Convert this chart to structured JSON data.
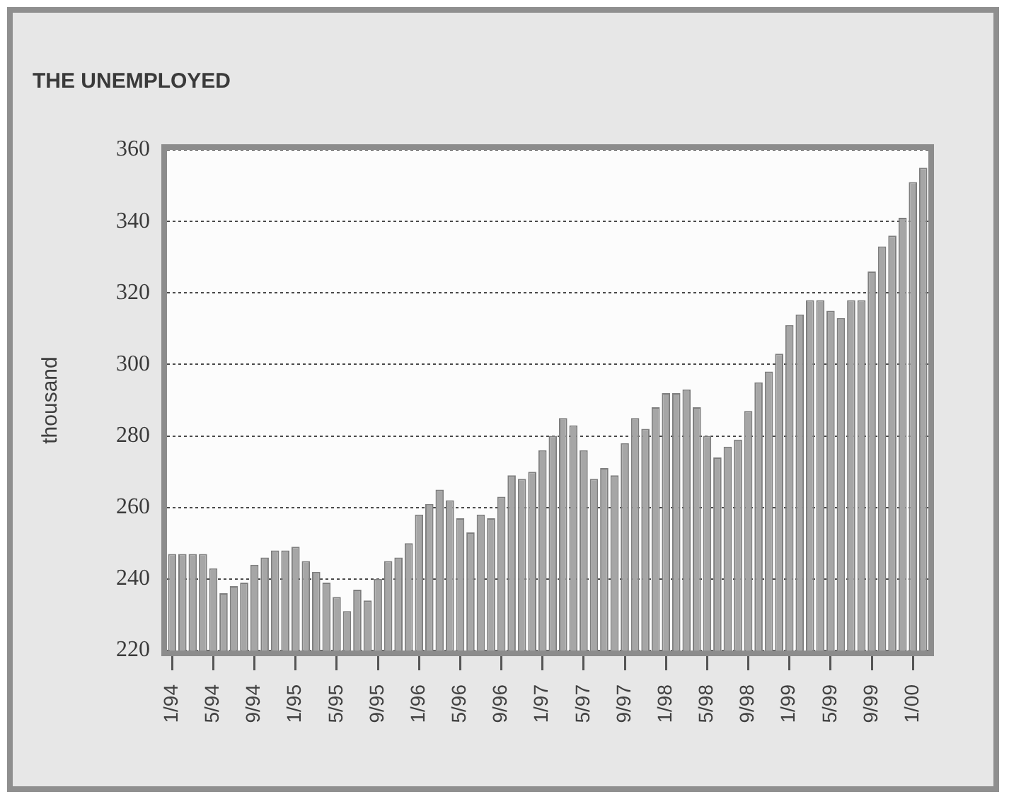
{
  "chart_data": {
    "type": "bar",
    "title": "THE UNEMPLOYED",
    "ylabel": "thousand",
    "categories": [
      "1/94",
      null,
      null,
      null,
      "5/94",
      null,
      null,
      null,
      "9/94",
      null,
      null,
      null,
      "1/95",
      null,
      null,
      null,
      "5/95",
      null,
      null,
      null,
      "9/95",
      null,
      null,
      null,
      "1/96",
      null,
      null,
      null,
      "5/96",
      null,
      null,
      null,
      "9/96",
      null,
      null,
      null,
      "1/97",
      null,
      null,
      null,
      "5/97",
      null,
      null,
      null,
      "9/97",
      null,
      null,
      null,
      "1/98",
      null,
      null,
      null,
      "5/98",
      null,
      null,
      null,
      "9/98",
      null,
      null,
      null,
      "1/99",
      null,
      null,
      null,
      "5/99",
      null,
      null,
      null,
      "9/99",
      null,
      null,
      null,
      "1/00",
      null
    ],
    "values": [
      247,
      247,
      247,
      247,
      243,
      236,
      238,
      239,
      244,
      246,
      248,
      248,
      249,
      245,
      242,
      239,
      235,
      231,
      237,
      234,
      240,
      245,
      246,
      250,
      258,
      261,
      265,
      262,
      257,
      253,
      258,
      257,
      263,
      269,
      268,
      270,
      276,
      280,
      285,
      283,
      276,
      268,
      271,
      269,
      278,
      285,
      282,
      288,
      292,
      292,
      293,
      288,
      280,
      274,
      277,
      279,
      287,
      295,
      298,
      303,
      311,
      314,
      318,
      318,
      315,
      313,
      318,
      318,
      326,
      333,
      336,
      341,
      351,
      355
    ],
    "color": "#a6a6a6",
    "ylim": [
      220,
      360
    ],
    "yticks": [
      220,
      240,
      260,
      280,
      300,
      320,
      340,
      360
    ],
    "grid": "y"
  }
}
